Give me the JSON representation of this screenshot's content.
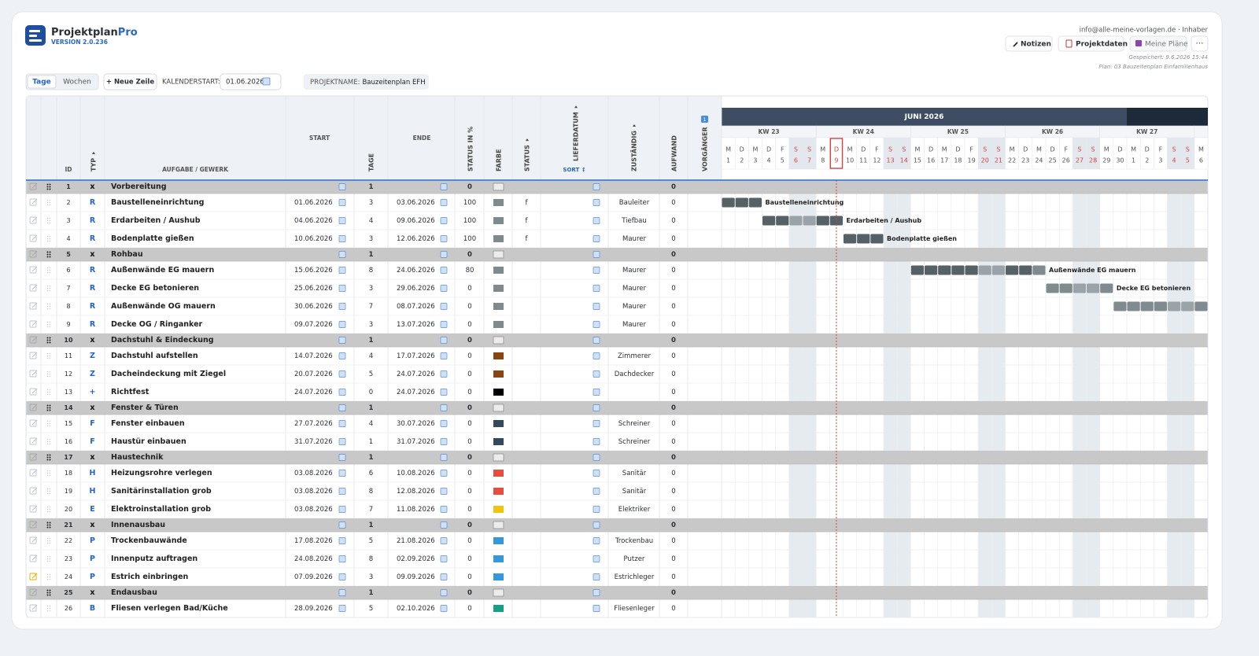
{
  "header": {
    "title": "Projektplan",
    "title_accent": "Pro",
    "version": "VERSION 2.0.236",
    "account": "info@alle-meine-vorlagen.de · Inhaber",
    "buttons": [
      "Notizen",
      "Projektdaten",
      "Meine Pläne",
      "⋯"
    ],
    "saved": "Gespeichert: 9.6.2026 15:44",
    "plan": "Plan: 03 Bauzeitenplan Einfamilienhaus"
  },
  "toolbar": {
    "view_tabs": [
      "Tage",
      "Wochen"
    ],
    "new_row": "+ Neue Zeile",
    "calendar_start_label": "KALENDERSTART:",
    "calendar_start": "01.06.2026",
    "project_label": "PROJEKTNAME:",
    "project_name": "Bauzeitenplan EFH"
  },
  "table": {
    "columns": [
      "ID",
      "TYP",
      "AUFGABE / GEWERK",
      "START",
      "TAGE",
      "ENDE",
      "STATUS IN %",
      "FARBE",
      "STATUS",
      "LIEFERDATUM",
      "ZUSTÄNDIG",
      "AUFWAND",
      "VORGÄNGER"
    ],
    "sort_label": "SORT ↕",
    "predecessor_badge": "1",
    "rows": [
      {
        "id": 1,
        "typ": "x",
        "task": "Vorbereitung",
        "tage": 1,
        "status_pct": 0,
        "aufwand": 0,
        "group": true
      },
      {
        "id": 2,
        "typ": "R",
        "task": "Baustelleneinrichtung",
        "start": "01.06.2026",
        "tage": 3,
        "ende": "03.06.2026",
        "status_pct": 100,
        "color": "#7f8a8c",
        "status": "f",
        "assignee": "Bauleiter",
        "aufwand": 0
      },
      {
        "id": 3,
        "typ": "R",
        "task": "Erdarbeiten / Aushub",
        "start": "04.06.2026",
        "tage": 4,
        "ende": "09.06.2026",
        "status_pct": 100,
        "color": "#7f8a8c",
        "status": "f",
        "assignee": "Tiefbau",
        "aufwand": 0
      },
      {
        "id": 4,
        "typ": "R",
        "task": "Bodenplatte gießen",
        "start": "10.06.2026",
        "tage": 3,
        "ende": "12.06.2026",
        "status_pct": 100,
        "color": "#7f8a8c",
        "status": "f",
        "assignee": "Maurer",
        "aufwand": 0
      },
      {
        "id": 5,
        "typ": "x",
        "task": "Rohbau",
        "tage": 1,
        "status_pct": 0,
        "aufwand": 0,
        "group": true
      },
      {
        "id": 6,
        "typ": "R",
        "task": "Außenwände EG mauern",
        "start": "15.06.2026",
        "tage": 8,
        "ende": "24.06.2026",
        "status_pct": 80,
        "color": "#7f8a8c",
        "assignee": "Maurer",
        "aufwand": 0
      },
      {
        "id": 7,
        "typ": "R",
        "task": "Decke EG betonieren",
        "start": "25.06.2026",
        "tage": 3,
        "ende": "29.06.2026",
        "status_pct": 0,
        "color": "#7f8a8c",
        "assignee": "Maurer",
        "aufwand": 0
      },
      {
        "id": 8,
        "typ": "R",
        "task": "Außenwände OG mauern",
        "start": "30.06.2026",
        "tage": 7,
        "ende": "08.07.2026",
        "status_pct": 0,
        "color": "#7f8a8c",
        "assignee": "Maurer",
        "aufwand": 0
      },
      {
        "id": 9,
        "typ": "R",
        "task": "Decke OG / Ringanker",
        "start": "09.07.2026",
        "tage": 3,
        "ende": "13.07.2026",
        "status_pct": 0,
        "color": "#7f8a8c",
        "assignee": "Maurer",
        "aufwand": 0
      },
      {
        "id": 10,
        "typ": "x",
        "task": "Dachstuhl & Eindeckung",
        "tage": 1,
        "status_pct": 0,
        "aufwand": 0,
        "group": true
      },
      {
        "id": 11,
        "typ": "Z",
        "task": "Dachstuhl aufstellen",
        "start": "14.07.2026",
        "tage": 4,
        "ende": "17.07.2026",
        "status_pct": 0,
        "color": "#8b4513",
        "assignee": "Zimmerer",
        "aufwand": 0
      },
      {
        "id": 12,
        "typ": "Z",
        "task": "Dacheindeckung mit Ziegel",
        "start": "20.07.2026",
        "tage": 5,
        "ende": "24.07.2026",
        "status_pct": 0,
        "color": "#8b4513",
        "assignee": "Dachdecker",
        "aufwand": 0
      },
      {
        "id": 13,
        "typ": "+",
        "task": "Richtfest",
        "start": "24.07.2026",
        "tage": 0,
        "ende": "24.07.2026",
        "status_pct": 0,
        "color": "#000000",
        "aufwand": 0
      },
      {
        "id": 14,
        "typ": "x",
        "task": "Fenster & Türen",
        "tage": 1,
        "status_pct": 0,
        "aufwand": 0,
        "group": true
      },
      {
        "id": 15,
        "typ": "F",
        "task": "Fenster einbauen",
        "start": "27.07.2026",
        "tage": 4,
        "ende": "30.07.2026",
        "status_pct": 0,
        "color": "#34495e",
        "assignee": "Schreiner",
        "aufwand": 0
      },
      {
        "id": 16,
        "typ": "F",
        "task": "Haustür einbauen",
        "start": "31.07.2026",
        "tage": 1,
        "ende": "31.07.2026",
        "status_pct": 0,
        "color": "#34495e",
        "assignee": "Schreiner",
        "aufwand": 0
      },
      {
        "id": 17,
        "typ": "x",
        "task": "Haustechnik",
        "tage": 1,
        "status_pct": 0,
        "aufwand": 0,
        "group": true
      },
      {
        "id": 18,
        "typ": "H",
        "task": "Heizungsrohre verlegen",
        "start": "03.08.2026",
        "tage": 6,
        "ende": "10.08.2026",
        "status_pct": 0,
        "color": "#e74c3c",
        "assignee": "Sanitär",
        "aufwand": 0
      },
      {
        "id": 19,
        "typ": "H",
        "task": "Sanitärinstallation grob",
        "start": "03.08.2026",
        "tage": 8,
        "ende": "12.08.2026",
        "status_pct": 0,
        "color": "#e74c3c",
        "assignee": "Sanitär",
        "aufwand": 0
      },
      {
        "id": 20,
        "typ": "E",
        "task": "Elektroinstallation grob",
        "start": "03.08.2026",
        "tage": 7,
        "ende": "11.08.2026",
        "status_pct": 0,
        "color": "#f1c40f",
        "assignee": "Elektriker",
        "aufwand": 0
      },
      {
        "id": 21,
        "typ": "x",
        "task": "Innenausbau",
        "tage": 1,
        "status_pct": 0,
        "aufwand": 0,
        "group": true
      },
      {
        "id": 22,
        "typ": "P",
        "task": "Trockenbauwände",
        "start": "17.08.2026",
        "tage": 5,
        "ende": "21.08.2026",
        "status_pct": 0,
        "color": "#3498db",
        "assignee": "Trockenbau",
        "aufwand": 0
      },
      {
        "id": 23,
        "typ": "P",
        "task": "Innenputz auftragen",
        "start": "24.08.2026",
        "tage": 8,
        "ende": "02.09.2026",
        "status_pct": 0,
        "color": "#3498db",
        "assignee": "Putzer",
        "aufwand": 0
      },
      {
        "id": 24,
        "typ": "P",
        "task": "Estrich einbringen",
        "start": "07.09.2026",
        "tage": 3,
        "ende": "09.09.2026",
        "status_pct": 0,
        "color": "#3498db",
        "assignee": "Estrichleger",
        "aufwand": 0,
        "highlight": true
      },
      {
        "id": 25,
        "typ": "x",
        "task": "Endausbau",
        "tage": 1,
        "status_pct": 0,
        "aufwand": 0,
        "group": true
      },
      {
        "id": 26,
        "typ": "B",
        "task": "Fliesen verlegen Bad/Küche",
        "start": "28.09.2026",
        "tage": 5,
        "ende": "02.10.2026",
        "status_pct": 0,
        "color": "#16a085",
        "assignee": "Fliesenleger",
        "aufwand": 0
      }
    ]
  },
  "gantt": {
    "month": "JUNI 2026",
    "weeks": [
      "KW 23",
      "KW 24",
      "KW 25",
      "KW 26",
      "KW 27"
    ],
    "days": [
      {
        "wd": "M",
        "day": 1
      },
      {
        "wd": "D",
        "day": 2
      },
      {
        "wd": "M",
        "day": 3
      },
      {
        "wd": "D",
        "day": 4
      },
      {
        "wd": "F",
        "day": 5
      },
      {
        "wd": "S",
        "day": 6
      },
      {
        "wd": "S",
        "day": 7
      },
      {
        "wd": "M",
        "day": 8
      },
      {
        "wd": "D",
        "day": 9,
        "today": true
      },
      {
        "wd": "M",
        "day": 10
      },
      {
        "wd": "D",
        "day": 11
      },
      {
        "wd": "F",
        "day": 12
      },
      {
        "wd": "S",
        "day": 13
      },
      {
        "wd": "S",
        "day": 14
      },
      {
        "wd": "M",
        "day": 15
      },
      {
        "wd": "D",
        "day": 16
      },
      {
        "wd": "M",
        "day": 17
      },
      {
        "wd": "D",
        "day": 18
      },
      {
        "wd": "F",
        "day": 19
      },
      {
        "wd": "S",
        "day": 20
      },
      {
        "wd": "S",
        "day": 21
      },
      {
        "wd": "M",
        "day": 22
      },
      {
        "wd": "D",
        "day": 23
      },
      {
        "wd": "M",
        "day": 24
      },
      {
        "wd": "D",
        "day": 25
      },
      {
        "wd": "F",
        "day": 26
      },
      {
        "wd": "S",
        "day": 27
      },
      {
        "wd": "S",
        "day": 28
      },
      {
        "wd": "M",
        "day": 29
      },
      {
        "wd": "D",
        "day": 30
      },
      {
        "wd": "M",
        "day": 1
      },
      {
        "wd": "D",
        "day": 2
      },
      {
        "wd": "F",
        "day": 3
      },
      {
        "wd": "S",
        "day": 4
      },
      {
        "wd": "S",
        "day": 5
      },
      {
        "wd": "M",
        "day": 6
      }
    ]
  }
}
